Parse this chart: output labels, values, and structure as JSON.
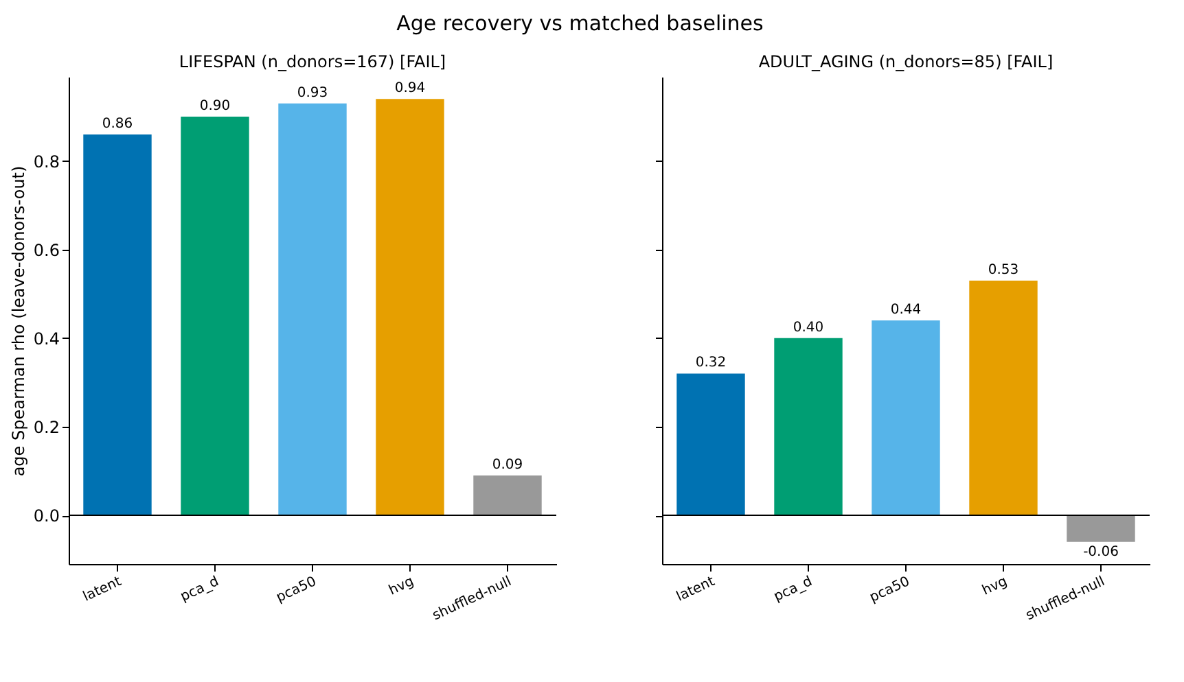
{
  "chart_data": [
    {
      "type": "bar",
      "title": "LIFESPAN  (n_donors=167)  [FAIL]",
      "ylabel": "age Spearman rho (leave-donors-out)",
      "annotations": [
        "Age recovery vs matched baselines"
      ],
      "categories": [
        "latent",
        "pca_d",
        "pca50",
        "hvg",
        "shuffled-null"
      ],
      "values": [
        0.86,
        0.9,
        0.93,
        0.94,
        0.09
      ],
      "value_labels": [
        "0.86",
        "0.90",
        "0.93",
        "0.94",
        "0.09"
      ],
      "colors": [
        "#0072b2",
        "#009e73",
        "#56b4e9",
        "#e69f00",
        "#999999"
      ],
      "ylim": [
        -0.11,
        0.99
      ],
      "yticks": [
        {
          "value": 0,
          "label": "0.0"
        },
        {
          "value": 0.2,
          "label": "0.2"
        },
        {
          "value": 0.4,
          "label": "0.4"
        },
        {
          "value": 0.6,
          "label": "0.6"
        },
        {
          "value": 0.8,
          "label": "0.8"
        }
      ],
      "grid": false,
      "ref_lines": [
        {
          "axis": "y",
          "value": 0,
          "color": "#000000"
        }
      ]
    },
    {
      "type": "bar",
      "title": "ADULT_AGING  (n_donors=85)  [FAIL]",
      "categories": [
        "latent",
        "pca_d",
        "pca50",
        "hvg",
        "shuffled-null"
      ],
      "values": [
        0.32,
        0.4,
        0.44,
        0.53,
        -0.06
      ],
      "value_labels": [
        "0.32",
        "0.40",
        "0.44",
        "0.53",
        "-0.06"
      ],
      "colors": [
        "#0072b2",
        "#009e73",
        "#56b4e9",
        "#e69f00",
        "#999999"
      ],
      "ylim": [
        -0.11,
        0.99
      ],
      "yticks": [
        0,
        0.2,
        0.4,
        0.6,
        0.8
      ],
      "grid": false,
      "tick_labels": "x",
      "ref_lines": [
        {
          "axis": "y",
          "value": 0,
          "color": "#000000"
        }
      ]
    }
  ]
}
